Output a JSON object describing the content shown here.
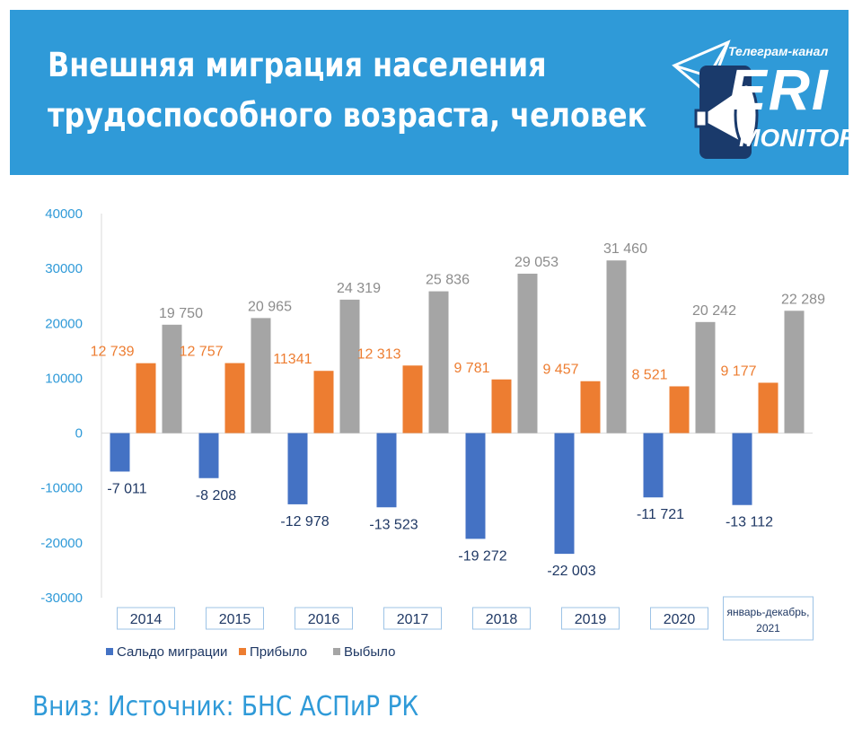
{
  "header": {
    "title_line1": "Внешняя миграция населения",
    "title_line2": "трудоспособного возраста, человек",
    "logo_caption": "Телеграм-канал",
    "logo_text": "ERI",
    "logo_subtext": "MONITOR"
  },
  "colors": {
    "banner": "#2f9ad8",
    "saldo": "#4472c4",
    "arrived": "#ed7d31",
    "departed": "#a5a5a5"
  },
  "chart_data": {
    "type": "bar",
    "categories": [
      "2014",
      "2015",
      "2016",
      "2017",
      "2018",
      "2019",
      "2020",
      "январь-декабрь, 2021"
    ],
    "series": [
      {
        "name": "Сальдо миграции",
        "values": [
          -7011,
          -8208,
          -12978,
          -13523,
          -19272,
          -22003,
          -11721,
          -13112
        ],
        "labels": [
          "-7 011",
          "-8 208",
          "-12 978",
          "-13 523",
          "-19 272",
          "-22 003",
          "-11 721",
          "-13 112"
        ]
      },
      {
        "name": "Прибыло",
        "values": [
          12739,
          12757,
          11341,
          12313,
          9781,
          9457,
          8521,
          9177
        ],
        "labels": [
          "12 739",
          "12 757",
          "11341",
          "12 313",
          "9 781",
          "9 457",
          "8 521",
          "9 177"
        ]
      },
      {
        "name": "Выбыло",
        "values": [
          19750,
          20965,
          24319,
          25836,
          29053,
          31460,
          20242,
          22289
        ],
        "labels": [
          "19 750",
          "20 965",
          "24 319",
          "25 836",
          "29 053",
          "31 460",
          "20 242",
          "22 289"
        ]
      }
    ],
    "ylim": [
      -30000,
      40000
    ],
    "yticks": [
      "-30000",
      "-20000",
      "-10000",
      "0",
      "10000",
      "20000",
      "30000",
      "40000"
    ],
    "legend": "bottom-left",
    "grid": false
  },
  "footer": {
    "source": "Вниз: Источник: БНС АСПиР РК"
  }
}
